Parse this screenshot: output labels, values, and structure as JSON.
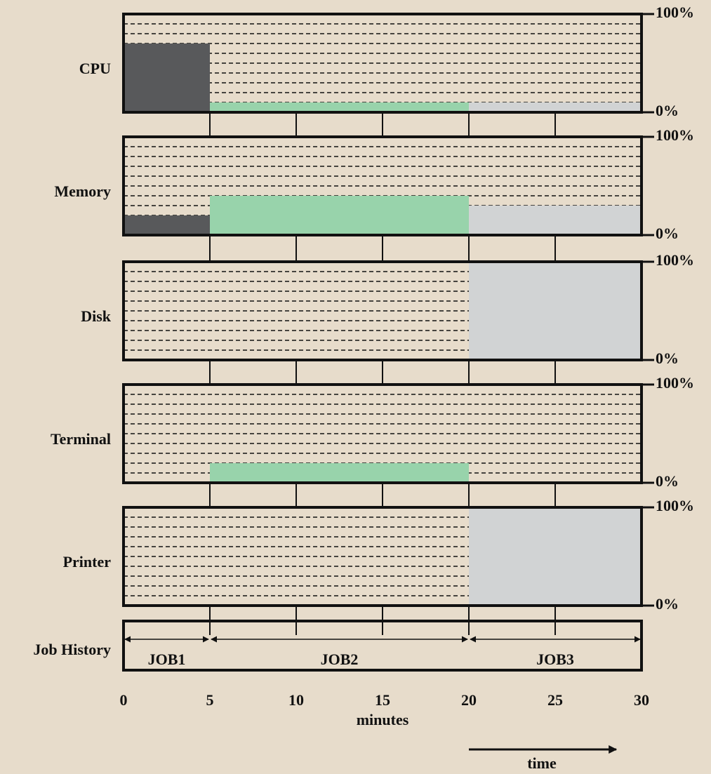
{
  "chart_data": {
    "type": "bar",
    "xlim": [
      0,
      30
    ],
    "xticks": [
      0,
      5,
      10,
      15,
      20,
      25,
      30
    ],
    "xlabel": "minutes",
    "arrow_label": "time",
    "ylim": [
      0,
      100
    ],
    "yticks": [
      {
        "value": 0,
        "label": "0%"
      },
      {
        "value": 100,
        "label": "100%"
      }
    ],
    "history_label": "Job History",
    "jobs": [
      {
        "name": "JOB1",
        "start": 0,
        "end": 5,
        "color": "#58595b"
      },
      {
        "name": "JOB2",
        "start": 5,
        "end": 20,
        "color": "#98d3ab"
      },
      {
        "name": "JOB3",
        "start": 20,
        "end": 30,
        "color": "#d1d3d4"
      }
    ],
    "panels": [
      {
        "name": "CPU",
        "values": [
          70,
          10,
          10
        ]
      },
      {
        "name": "Memory",
        "values": [
          20,
          40,
          30
        ]
      },
      {
        "name": "Disk",
        "values": [
          0,
          0,
          100
        ]
      },
      {
        "name": "Terminal",
        "values": [
          0,
          20,
          0
        ]
      },
      {
        "name": "Printer",
        "values": [
          0,
          0,
          100
        ]
      }
    ]
  }
}
